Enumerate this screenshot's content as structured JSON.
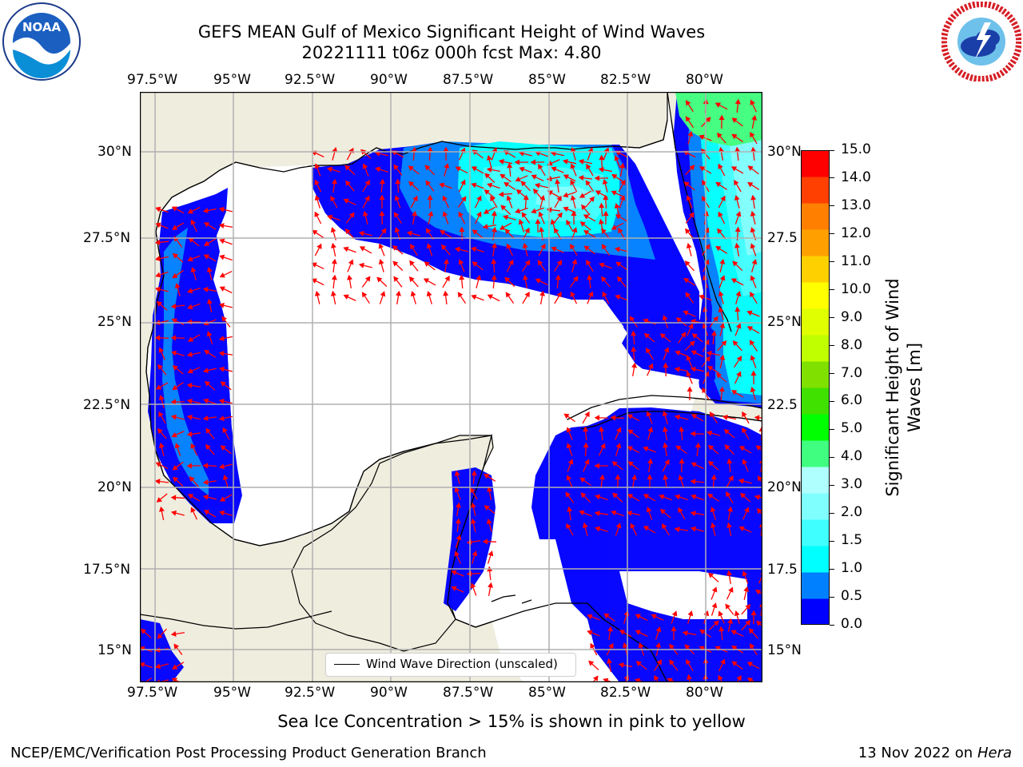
{
  "title": {
    "line1": "GEFS MEAN Gulf of Mexico Significant Height of Wind Waves",
    "line2": "20221111 t06z 000h fcst   Max: 4.80"
  },
  "logos": {
    "noaa": {
      "text": "NOAA",
      "ring_text": "NATIONAL OCEANIC AND ATMOSPHERIC ADMINISTRATION · U.S. DEPARTMENT OF COMMERCE"
    },
    "nws": {
      "ring_text": "NATIONAL WEATHER SERVICE"
    }
  },
  "map": {
    "lon_ticks": [
      "97.5°W",
      "95°W",
      "92.5°W",
      "90°W",
      "87.5°W",
      "85°W",
      "82.5°W",
      "80°W"
    ],
    "lat_ticks_left": [
      "30°N",
      "27.5°N",
      "25°N",
      "22.5°N",
      "20°N",
      "17.5°N",
      "15°N"
    ],
    "lat_ticks_right": [
      "30°N",
      "27.5",
      "25°N",
      "22.5",
      "20°N",
      "17.5",
      "15°N"
    ],
    "legend_label": "Wind Wave Direction (unscaled)",
    "colors": {
      "land": "#efedde",
      "ocean_no_data": "#ffffff",
      "arrow": "#ff0000",
      "grid": "#b0b0b0",
      "coast": "#000000"
    }
  },
  "colorbar": {
    "title_line1": "Significant Height of Wind",
    "title_line2": "Waves [m]",
    "labels": [
      "15.0",
      "14.0",
      "13.0",
      "12.0",
      "11.0",
      "10.0",
      "9.0",
      "8.0",
      "7.0",
      "6.0",
      "5.0",
      "4.0",
      "3.0",
      "2.0",
      "1.5",
      "1.0",
      "0.5",
      "0.0"
    ],
    "colors": [
      "#0000ff",
      "#0080ff",
      "#00ffff",
      "#40ffff",
      "#80ffff",
      "#b0ffff",
      "#40ff80",
      "#00ff00",
      "#40e000",
      "#80e000",
      "#c0ff00",
      "#e0ff00",
      "#ffff00",
      "#ffd000",
      "#ffa000",
      "#ff8000",
      "#ff4000",
      "#ff0000"
    ]
  },
  "notes": {
    "ice": "Sea Ice Concentration > 15% is shown in pink to yellow",
    "branch": "NCEP/EMC/Verification Post Processing Product Generation Branch",
    "date": "13 Nov 2022 on",
    "machine": "Hera"
  }
}
